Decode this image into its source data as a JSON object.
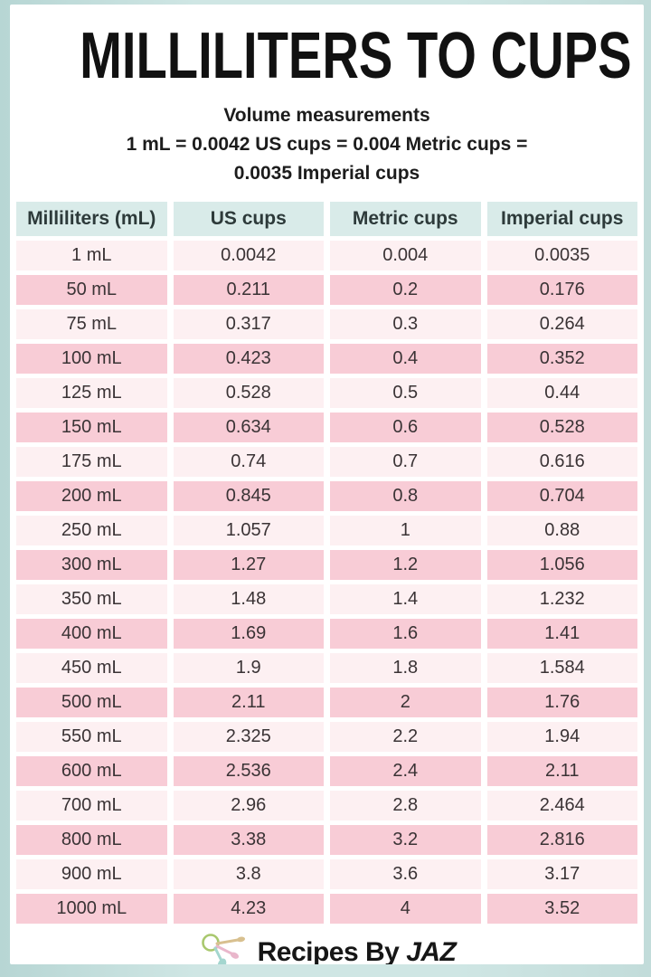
{
  "title": "MILLILITERS TO CUPS",
  "subtitle": {
    "line1": "Volume measurements",
    "line2": "1 mL = 0.0042 US cups = 0.004 Metric cups =",
    "line3": "0.0035 Imperial cups"
  },
  "table": {
    "headers": [
      "Milliliters (mL)",
      "US cups",
      "Metric cups",
      "Imperial cups"
    ],
    "rows": [
      [
        "1 mL",
        "0.0042",
        "0.004",
        "0.0035"
      ],
      [
        "50 mL",
        "0.211",
        "0.2",
        "0.176"
      ],
      [
        "75 mL",
        "0.317",
        "0.3",
        "0.264"
      ],
      [
        "100 mL",
        "0.423",
        "0.4",
        "0.352"
      ],
      [
        "125 mL",
        "0.528",
        "0.5",
        "0.44"
      ],
      [
        "150 mL",
        "0.634",
        "0.6",
        "0.528"
      ],
      [
        "175 mL",
        "0.74",
        "0.7",
        "0.616"
      ],
      [
        "200 mL",
        "0.845",
        "0.8",
        "0.704"
      ],
      [
        "250 mL",
        "1.057",
        "1",
        "0.88"
      ],
      [
        "300 mL",
        "1.27",
        "1.2",
        "1.056"
      ],
      [
        "350 mL",
        "1.48",
        "1.4",
        "1.232"
      ],
      [
        "400 mL",
        "1.69",
        "1.6",
        "1.41"
      ],
      [
        "450 mL",
        "1.9",
        "1.8",
        "1.584"
      ],
      [
        "500 mL",
        "2.11",
        "2",
        "1.76"
      ],
      [
        "550 mL",
        "2.325",
        "2.2",
        "1.94"
      ],
      [
        "600 mL",
        "2.536",
        "2.4",
        "2.11"
      ],
      [
        "700 mL",
        "2.96",
        "2.8",
        "2.464"
      ],
      [
        "800 mL",
        "3.38",
        "3.2",
        "2.816"
      ],
      [
        "900 mL",
        "3.8",
        "3.6",
        "3.17"
      ],
      [
        "1000 mL",
        "4.23",
        "4",
        "3.52"
      ]
    ]
  },
  "footer": {
    "brand_prefix": "Recipes By ",
    "brand_suffix": "JAZ",
    "icon": "measuring-spoons-icon"
  },
  "chart_data": {
    "type": "table",
    "title": "MILLILITERS TO CUPS",
    "columns": [
      "Milliliters (mL)",
      "US cups",
      "Metric cups",
      "Imperial cups"
    ],
    "milliliters": [
      1,
      50,
      75,
      100,
      125,
      150,
      175,
      200,
      250,
      300,
      350,
      400,
      450,
      500,
      550,
      600,
      700,
      800,
      900,
      1000
    ],
    "us_cups": [
      0.0042,
      0.211,
      0.317,
      0.423,
      0.528,
      0.634,
      0.74,
      0.845,
      1.057,
      1.27,
      1.48,
      1.69,
      1.9,
      2.11,
      2.325,
      2.536,
      2.96,
      3.38,
      3.8,
      4.23
    ],
    "metric_cups": [
      0.004,
      0.2,
      0.3,
      0.4,
      0.5,
      0.6,
      0.7,
      0.8,
      1,
      1.2,
      1.4,
      1.6,
      1.8,
      2,
      2.2,
      2.4,
      2.8,
      3.2,
      3.6,
      4
    ],
    "imperial_cups": [
      0.0035,
      0.176,
      0.264,
      0.352,
      0.44,
      0.528,
      0.616,
      0.704,
      0.88,
      1.056,
      1.232,
      1.41,
      1.584,
      1.76,
      1.94,
      2.11,
      2.464,
      2.816,
      3.17,
      3.52
    ]
  },
  "colors": {
    "border_teal": "#cfe6e4",
    "header_teal": "#d9ebe9",
    "row_pale_pink": "#fdf0f2",
    "row_pink": "#f8ccd6",
    "title_black": "#111111",
    "spoon_ring_green": "#a9c86e",
    "spoon_tan": "#d8c08f",
    "spoon_pink": "#e9b7cb",
    "spoon_teal": "#a4d6cf"
  }
}
